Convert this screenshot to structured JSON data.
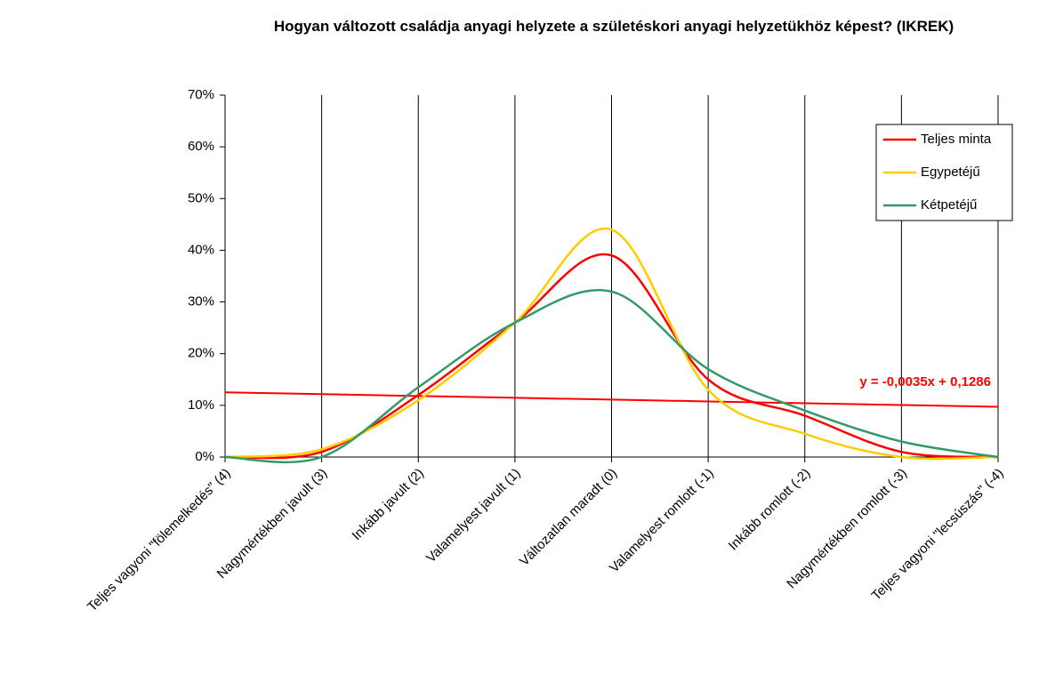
{
  "chart_data": {
    "type": "line",
    "title": "Hogyan változott családja anyagi helyzete a születéskori anyagi helyzetükhöz képest? (IKREK)",
    "categories": [
      "Teljes vagyoni \"fölemelkedés\" (4)",
      "Nagymértékben javult (3)",
      "Inkább javult (2)",
      "Valamelyest javult (1)",
      "Változatlan maradt (0)",
      "Valamelyest romlott (-1)",
      "Inkább romlott (-2)",
      "Nagymértékben romlott (-3)",
      "Teljes vagyoni \"lecsúszás\" (-4)"
    ],
    "series": [
      {
        "name": "Teljes minta",
        "color": "#ff0000",
        "values": [
          0,
          1,
          12,
          26,
          39,
          15,
          8,
          1,
          0
        ]
      },
      {
        "name": "Egypetéjű",
        "color": "#ffcc00",
        "values": [
          0,
          1.5,
          11,
          26,
          44,
          13,
          4.5,
          0,
          0
        ]
      },
      {
        "name": "Kétpetéjű",
        "color": "#339966",
        "values": [
          0,
          0,
          13.5,
          26,
          32,
          17,
          9,
          3,
          0
        ]
      }
    ],
    "trendline": {
      "label": "y = -0,0035x + 0,1286",
      "color": "#ff0000",
      "values": [
        12.51,
        12.16,
        11.81,
        11.46,
        11.11,
        10.76,
        10.41,
        10.06,
        9.71
      ]
    },
    "ylim": [
      0,
      70
    ],
    "yticks": [
      {
        "value": 0,
        "label": "0%"
      },
      {
        "value": 10,
        "label": "10%"
      },
      {
        "value": 20,
        "label": "20%"
      },
      {
        "value": 30,
        "label": "30%"
      },
      {
        "value": 40,
        "label": "40%"
      },
      {
        "value": 50,
        "label": "50%"
      },
      {
        "value": 60,
        "label": "60%"
      },
      {
        "value": 70,
        "label": "70%"
      }
    ],
    "grid": true,
    "smooth": true,
    "legend": "top-right"
  }
}
